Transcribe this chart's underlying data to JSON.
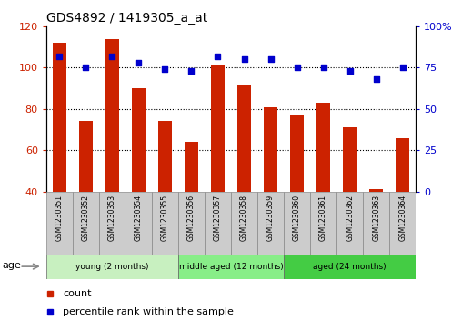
{
  "title": "GDS4892 / 1419305_a_at",
  "samples": [
    "GSM1230351",
    "GSM1230352",
    "GSM1230353",
    "GSM1230354",
    "GSM1230355",
    "GSM1230356",
    "GSM1230357",
    "GSM1230358",
    "GSM1230359",
    "GSM1230360",
    "GSM1230361",
    "GSM1230362",
    "GSM1230363",
    "GSM1230364"
  ],
  "counts": [
    112,
    74,
    114,
    90,
    74,
    64,
    101,
    92,
    81,
    77,
    83,
    71,
    41,
    66
  ],
  "percentiles": [
    82,
    75,
    82,
    78,
    74,
    73,
    82,
    80,
    80,
    75,
    75,
    73,
    68,
    75
  ],
  "ylim_left": [
    40,
    120
  ],
  "ylim_right": [
    0,
    100
  ],
  "yticks_left": [
    40,
    60,
    80,
    100,
    120
  ],
  "yticks_right": [
    0,
    25,
    50,
    75,
    100
  ],
  "ytick_right_labels": [
    "0",
    "25",
    "50",
    "75",
    "100%"
  ],
  "groups": [
    {
      "label": "young (2 months)",
      "start": 0,
      "end": 5,
      "color": "#C8F0C0"
    },
    {
      "label": "middle aged (12 months)",
      "start": 5,
      "end": 9,
      "color": "#88EE88"
    },
    {
      "label": "aged (24 months)",
      "start": 9,
      "end": 14,
      "color": "#44CC44"
    }
  ],
  "bar_color": "#CC2200",
  "dot_color": "#0000CC",
  "left_color": "#CC2200",
  "right_color": "#0000CC",
  "sample_bg": "#CCCCCC",
  "title_fontsize": 10,
  "bar_width": 0.5,
  "gridlines": [
    60,
    80,
    100
  ]
}
